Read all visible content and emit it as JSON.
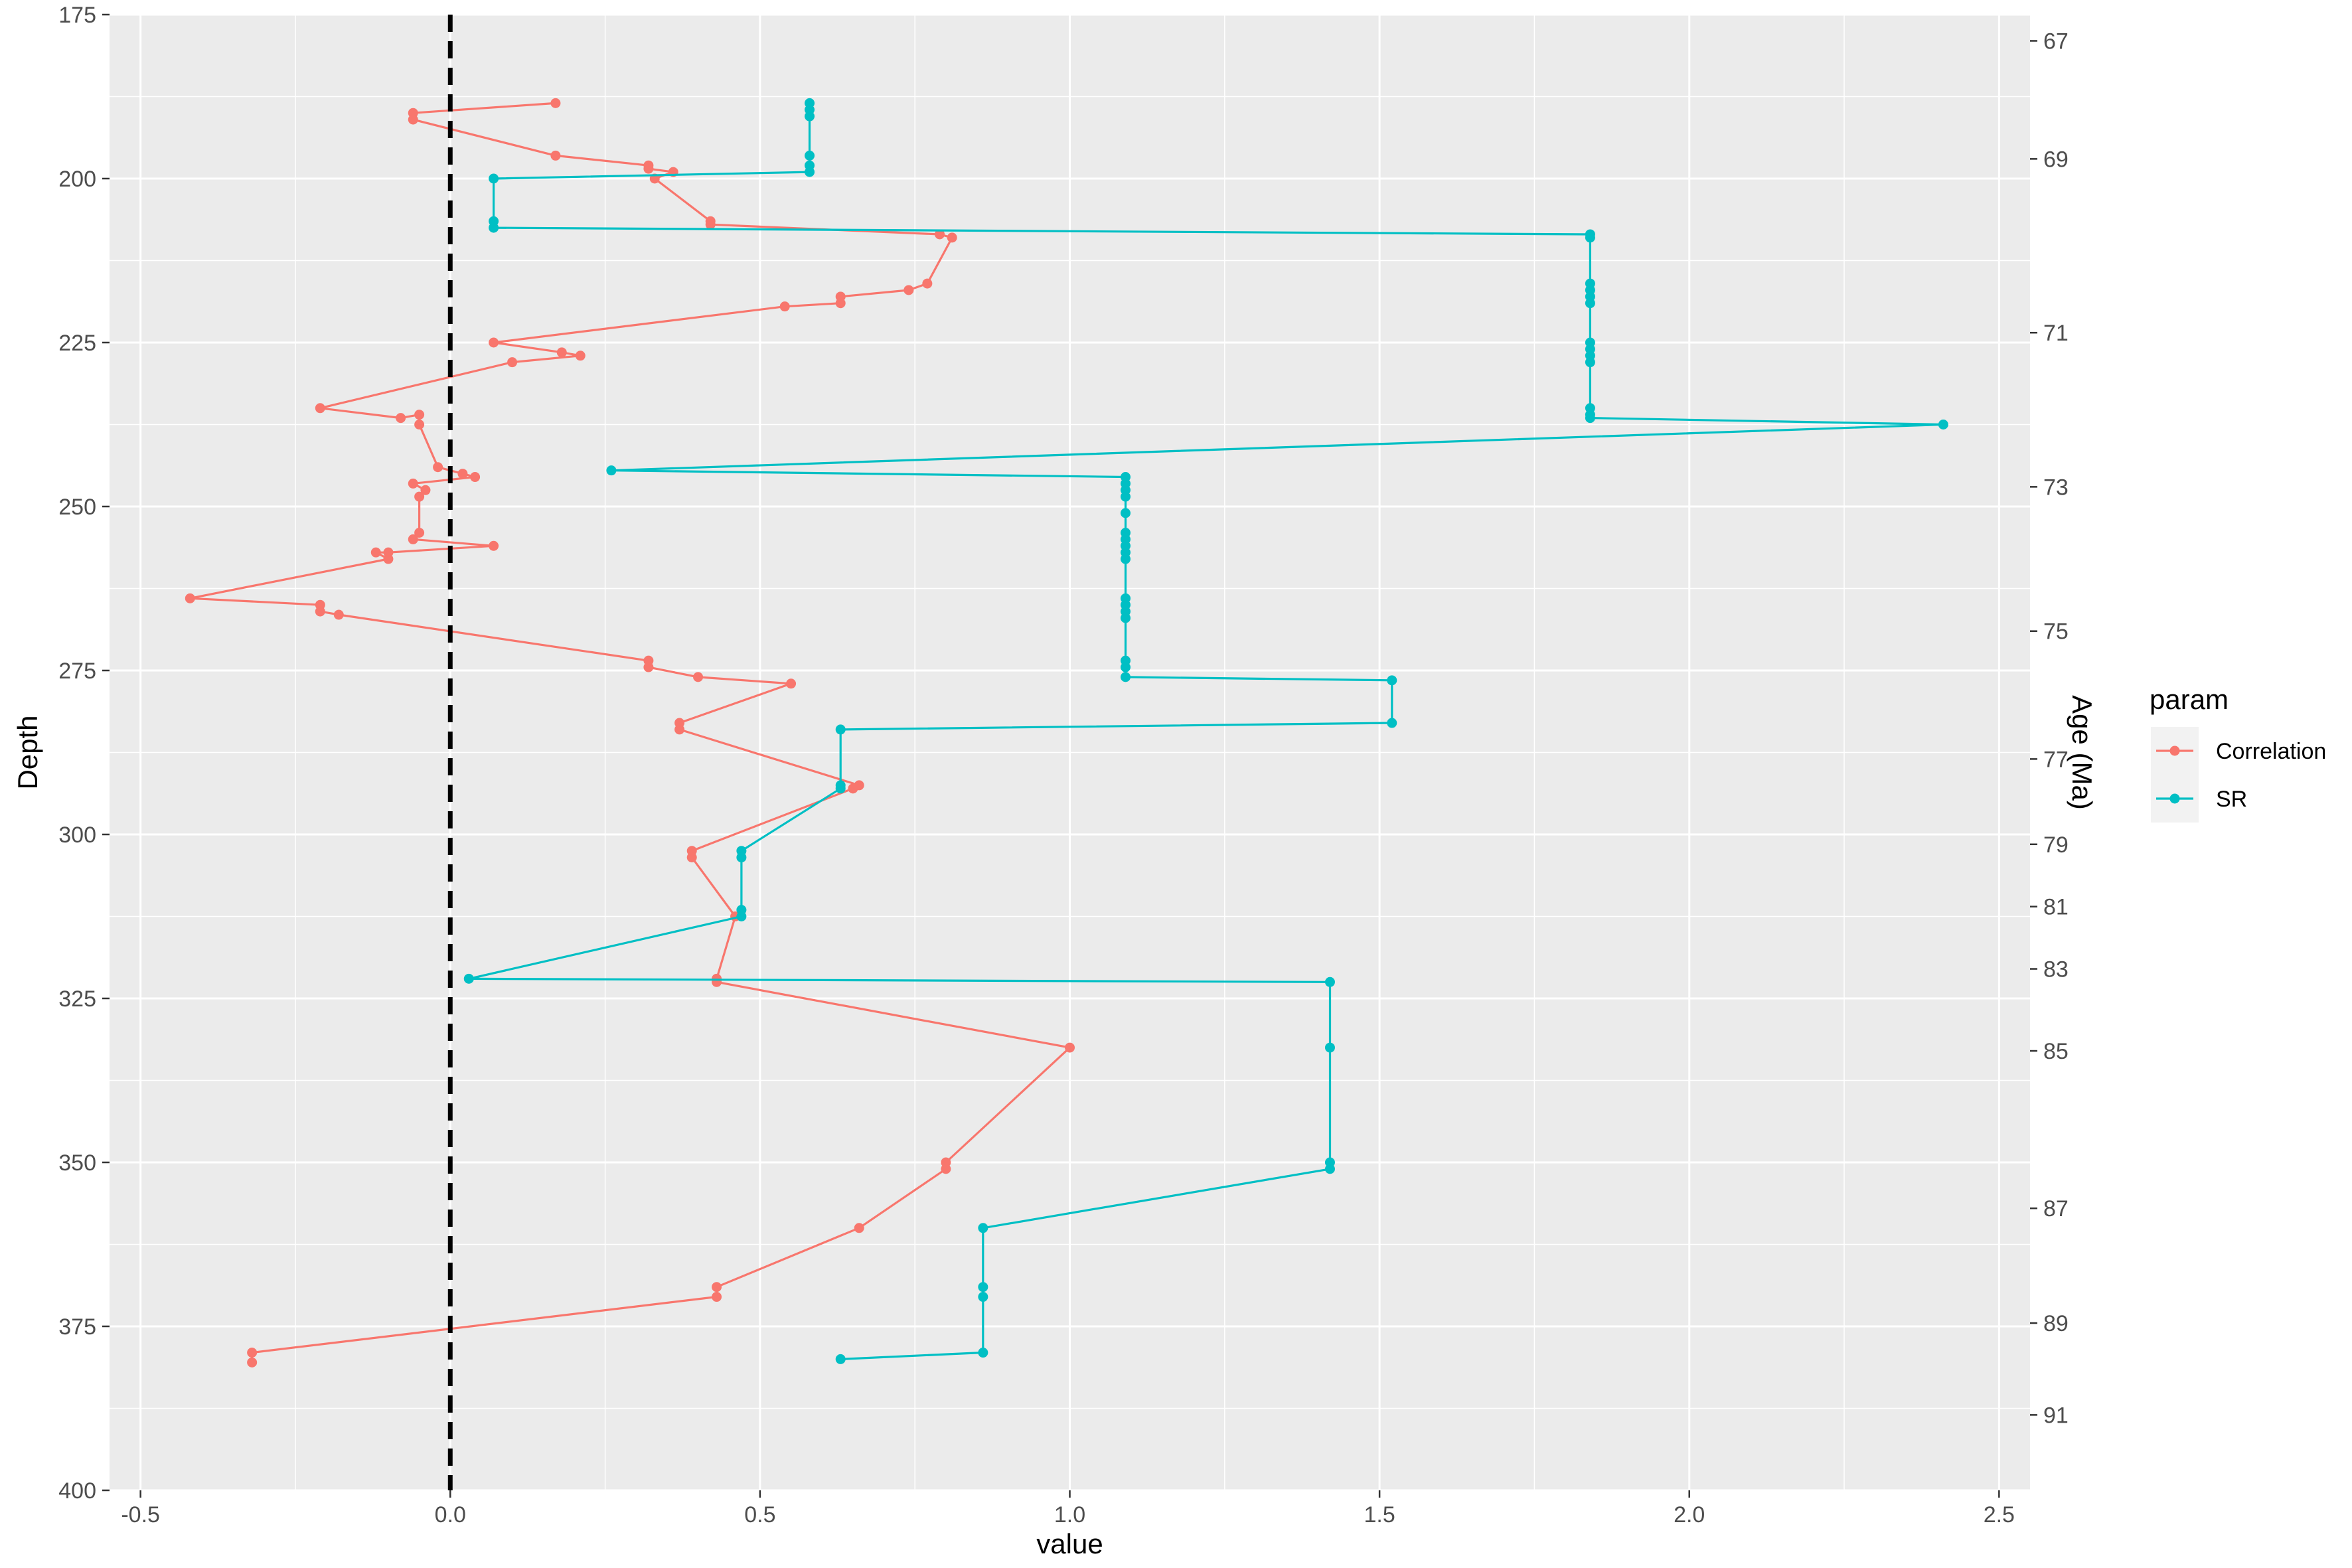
{
  "chart_data": {
    "type": "line",
    "xlabel": "value",
    "ylabel": "Depth",
    "y2label": "Age (Ma)",
    "xlim": [
      -0.55,
      2.55
    ],
    "ylim": [
      175,
      400
    ],
    "y_reversed": true,
    "grid": true,
    "x_ticks": [
      -0.5,
      0.0,
      0.5,
      1.0,
      1.5,
      2.0,
      2.5
    ],
    "x_tick_labels": [
      "-0.5",
      "0.0",
      "0.5",
      "1.0",
      "1.5",
      "2.0",
      "2.5"
    ],
    "y_ticks": [
      175,
      200,
      225,
      250,
      275,
      300,
      325,
      350,
      375,
      400
    ],
    "y_tick_labels": [
      "175",
      "200",
      "225",
      "250",
      "275",
      "300",
      "325",
      "350",
      "375",
      "400"
    ],
    "y2_ticks": [
      {
        "depth": 179,
        "label": "67"
      },
      {
        "depth": 197,
        "label": "69"
      },
      {
        "depth": 223.5,
        "label": "71"
      },
      {
        "depth": 247,
        "label": "73"
      },
      {
        "depth": 269,
        "label": "75"
      },
      {
        "depth": 288.5,
        "label": "77"
      },
      {
        "depth": 301.5,
        "label": "79"
      },
      {
        "depth": 311,
        "label": "81"
      },
      {
        "depth": 320.5,
        "label": "83"
      },
      {
        "depth": 333,
        "label": "85"
      },
      {
        "depth": 357,
        "label": "87"
      },
      {
        "depth": 374.5,
        "label": "89"
      },
      {
        "depth": 388.5,
        "label": "91"
      }
    ],
    "reference_line": {
      "x": 0.0,
      "style": "dashed",
      "color": "#000000"
    },
    "legend": {
      "title": "param",
      "placement": "right"
    },
    "series": [
      {
        "name": "Correlation",
        "color": "#F8766D",
        "points": [
          [
            0.17,
            188.5
          ],
          [
            -0.06,
            190
          ],
          [
            -0.06,
            191
          ],
          [
            0.17,
            196.5
          ],
          [
            0.32,
            198
          ],
          [
            0.32,
            198.5
          ],
          [
            0.36,
            199
          ],
          [
            0.33,
            200
          ],
          [
            0.42,
            206.5
          ],
          [
            0.42,
            207
          ],
          [
            0.79,
            208.5
          ],
          [
            0.81,
            209
          ],
          [
            0.77,
            216
          ],
          [
            0.74,
            217
          ],
          [
            0.63,
            218
          ],
          [
            0.63,
            219
          ],
          [
            0.54,
            219.5
          ],
          [
            0.07,
            225
          ],
          [
            0.18,
            226.5
          ],
          [
            0.21,
            227
          ],
          [
            0.1,
            228
          ],
          [
            -0.21,
            235
          ],
          [
            -0.08,
            236.5
          ],
          [
            -0.05,
            236
          ],
          [
            -0.05,
            237.5
          ],
          [
            -0.02,
            244
          ],
          [
            0.02,
            245
          ],
          [
            0.04,
            245.5
          ],
          [
            -0.06,
            246.5
          ],
          [
            -0.04,
            247.5
          ],
          [
            -0.05,
            248.5
          ],
          [
            -0.05,
            254
          ],
          [
            -0.06,
            255
          ],
          [
            0.07,
            256
          ],
          [
            -0.1,
            257
          ],
          [
            -0.12,
            257
          ],
          [
            -0.1,
            258
          ],
          [
            -0.42,
            264
          ],
          [
            -0.21,
            265
          ],
          [
            -0.21,
            266
          ],
          [
            -0.18,
            266.5
          ],
          [
            0.32,
            273.5
          ],
          [
            0.32,
            274.5
          ],
          [
            0.4,
            276
          ],
          [
            0.55,
            277
          ],
          [
            0.37,
            283
          ],
          [
            0.37,
            284
          ],
          [
            0.66,
            292.5
          ],
          [
            0.65,
            293
          ],
          [
            0.39,
            302.5
          ],
          [
            0.39,
            303.5
          ],
          [
            0.46,
            312.5
          ],
          [
            0.43,
            322
          ],
          [
            0.43,
            322.5
          ],
          [
            1.0,
            332.5
          ],
          [
            0.8,
            350
          ],
          [
            0.8,
            351
          ],
          [
            0.66,
            360
          ],
          [
            0.43,
            369
          ],
          [
            0.43,
            370.5
          ],
          [
            -0.32,
            379
          ],
          [
            -0.32,
            380.5
          ]
        ]
      },
      {
        "name": "SR",
        "color": "#00BFC4",
        "points": [
          [
            0.58,
            188.5
          ],
          [
            0.58,
            189.5
          ],
          [
            0.58,
            190.5
          ],
          [
            0.58,
            196.5
          ],
          [
            0.58,
            198
          ],
          [
            0.58,
            199
          ],
          [
            0.07,
            200
          ],
          [
            0.07,
            206.5
          ],
          [
            0.07,
            207.5
          ],
          [
            1.84,
            208.5
          ],
          [
            1.84,
            209
          ],
          [
            1.84,
            216
          ],
          [
            1.84,
            217
          ],
          [
            1.84,
            218
          ],
          [
            1.84,
            219
          ],
          [
            1.84,
            225
          ],
          [
            1.84,
            226
          ],
          [
            1.84,
            227
          ],
          [
            1.84,
            228
          ],
          [
            1.84,
            235
          ],
          [
            1.84,
            236
          ],
          [
            1.84,
            236.5
          ],
          [
            2.41,
            237.5
          ],
          [
            0.26,
            244.5
          ],
          [
            1.09,
            245.5
          ],
          [
            1.09,
            246.5
          ],
          [
            1.09,
            247.5
          ],
          [
            1.09,
            248.5
          ],
          [
            1.09,
            251
          ],
          [
            1.09,
            254
          ],
          [
            1.09,
            255
          ],
          [
            1.09,
            256
          ],
          [
            1.09,
            257
          ],
          [
            1.09,
            258
          ],
          [
            1.09,
            264
          ],
          [
            1.09,
            265
          ],
          [
            1.09,
            266
          ],
          [
            1.09,
            267
          ],
          [
            1.09,
            273.5
          ],
          [
            1.09,
            274.5
          ],
          [
            1.09,
            276
          ],
          [
            1.52,
            276.5
          ],
          [
            1.52,
            283
          ],
          [
            0.63,
            284
          ],
          [
            0.63,
            292.5
          ],
          [
            0.63,
            293
          ],
          [
            0.47,
            302.5
          ],
          [
            0.47,
            303.5
          ],
          [
            0.47,
            311.5
          ],
          [
            0.47,
            312.5
          ],
          [
            0.03,
            322
          ],
          [
            1.42,
            322.5
          ],
          [
            1.42,
            332.5
          ],
          [
            1.42,
            350
          ],
          [
            1.42,
            351
          ],
          [
            0.86,
            360
          ],
          [
            0.86,
            369
          ],
          [
            0.86,
            370.5
          ],
          [
            0.86,
            379
          ],
          [
            0.63,
            380
          ]
        ]
      }
    ]
  }
}
